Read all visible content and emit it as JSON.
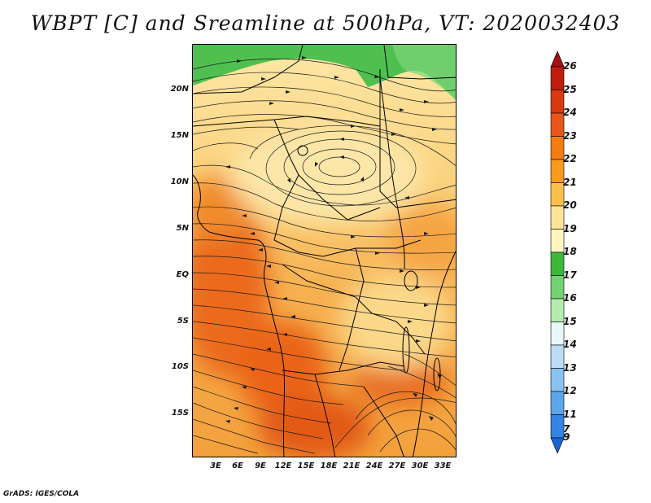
{
  "title": "WBPT [C] and Sreamline at 500hPa, VT: 2020032403",
  "credit": "GrADS: IGES/COLA",
  "map": {
    "lat_labels": [
      "20N",
      "15N",
      "10N",
      "5N",
      "EQ",
      "5S",
      "10S",
      "15S"
    ],
    "lon_labels": [
      "3E",
      "6E",
      "9E",
      "12E",
      "15E",
      "18E",
      "21E",
      "24E",
      "27E",
      "30E",
      "33E"
    ]
  },
  "colorbar": {
    "labels": [
      "26",
      "25",
      "24",
      "23",
      "22",
      "21",
      "20",
      "19",
      "18",
      "17",
      "16",
      "15",
      "14",
      "13",
      "12",
      "11",
      "9",
      "7"
    ],
    "colors": [
      "#a50f0f",
      "#c01c0c",
      "#d83a10",
      "#e8561a",
      "#f27d10",
      "#f79a20",
      "#fbbf4e",
      "#fde39a",
      "#fdf5c0",
      "#3cb83c",
      "#74d274",
      "#b4ecb0",
      "#e6f8f8",
      "#bcdcf6",
      "#8cc2f0",
      "#5ea6ea",
      "#3484e4",
      "#1a64d8"
    ]
  }
}
